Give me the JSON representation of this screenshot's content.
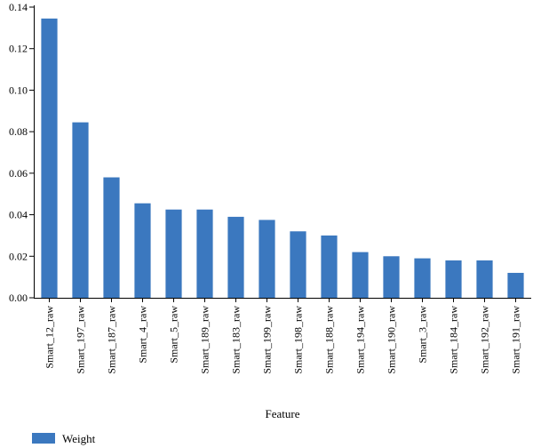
{
  "chart_data": {
    "type": "bar",
    "categories": [
      "Smart_12_raw",
      "Smart_197_raw",
      "Smart_187_raw",
      "Smart_4_raw",
      "Smart_5_raw",
      "Smart_189_raw",
      "Smart_183_raw",
      "Smart_199_raw",
      "Smart_198_raw",
      "Smart_188_raw",
      "Smart_194_raw",
      "Smart_190_raw",
      "Smart_3_raw",
      "Smart_184_raw",
      "Smart_192_raw",
      "Smart_191_raw"
    ],
    "series": [
      {
        "name": "Weight",
        "color": "#3b78bf",
        "values": [
          0.1345,
          0.0845,
          0.058,
          0.0455,
          0.0425,
          0.0425,
          0.039,
          0.0375,
          0.032,
          0.03,
          0.022,
          0.02,
          0.019,
          0.018,
          0.018,
          0.012
        ]
      }
    ],
    "xlabel": "Feature",
    "ylabel": "",
    "ylim": [
      0,
      0.14
    ],
    "yticks": [
      "0.00",
      "0.02",
      "0.04",
      "0.06",
      "0.08",
      "0.10",
      "0.12",
      "0.14"
    ],
    "grid": false,
    "legend_position": "bottom-left"
  }
}
